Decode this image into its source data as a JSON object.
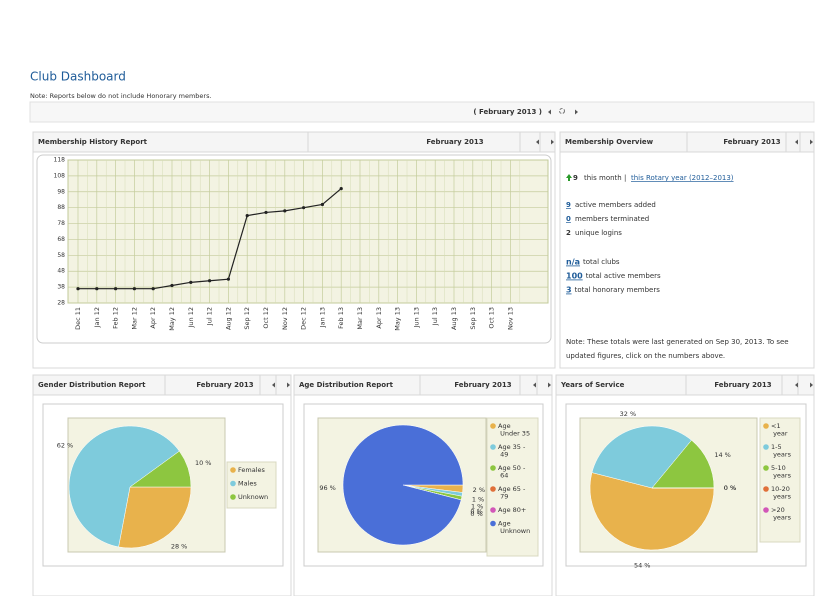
{
  "header": {
    "title": "Club Dashboard",
    "note": "Note: Reports below do not include Honorary members.",
    "period": "( February 2013 )"
  },
  "overview": {
    "title": "Membership Overview",
    "period": "February 2013",
    "month_count": 9,
    "month_text": "this month |",
    "year_link": "this Rotary year (2012–2013)",
    "stats": [
      {
        "value": 9,
        "label": "active members added"
      },
      {
        "value": 0,
        "label": "members terminated"
      },
      {
        "value": 2,
        "label": "unique logins"
      }
    ],
    "totals": [
      {
        "value": "n/a",
        "label": "total clubs"
      },
      {
        "value": 100,
        "label": "total active members"
      },
      {
        "value": 3,
        "label": "total honorary members"
      }
    ],
    "note": [
      "Note: These totals were last generated on Sep 30, 2013. To see",
      "updated figures, click on the numbers above."
    ]
  },
  "chart_data": [
    {
      "type": "line",
      "title": "Membership History Report",
      "period": "February 2013",
      "categories": [
        "Dec 11",
        "Jan 12",
        "Feb 12",
        "Mar 12",
        "Apr 12",
        "May 12",
        "Jun 12",
        "Jul 12",
        "Aug 12",
        "Sep 12",
        "Oct 12",
        "Nov 12",
        "Dec 12",
        "Jan 13",
        "Feb 13",
        "Mar 13",
        "Apr 13",
        "May 13",
        "Jun 13",
        "Jul 13",
        "Aug 13",
        "Sep 13",
        "Oct 13",
        "Nov 13"
      ],
      "values": [
        37,
        37,
        37,
        37,
        37,
        39,
        41,
        42,
        43,
        83,
        85,
        86,
        88,
        90,
        100,
        null,
        null,
        null,
        null,
        null,
        null,
        null,
        null,
        null
      ],
      "color": "#222222",
      "ylim": [
        28,
        118
      ],
      "yticks": [
        28,
        38,
        48,
        58,
        68,
        78,
        88,
        98,
        108,
        118
      ],
      "grid": true
    },
    {
      "type": "pie",
      "title": "Gender Distribution Report",
      "period": "February 2013",
      "categories": [
        "Females",
        "Males",
        "Unknown"
      ],
      "values": [
        28,
        62,
        10
      ],
      "value_labels": [
        "28 %",
        "62 %",
        "10 %"
      ],
      "colors": [
        "#e8b24c",
        "#7ecbdc",
        "#8dc640"
      ]
    },
    {
      "type": "pie",
      "title": "Age Distribution Report",
      "period": "February 2013",
      "categories": [
        "Age Under 35",
        "Age 35 - 49",
        "Age 50 - 64",
        "Age 65 - 79",
        "Age 80+",
        "Age Unknown"
      ],
      "values": [
        2,
        1,
        1,
        0,
        0,
        96
      ],
      "value_labels": [
        "2 %",
        "1 %",
        "1 %",
        "0 %",
        "0 %",
        "96 %"
      ],
      "colors": [
        "#e8b24c",
        "#7ecbdc",
        "#8dc640",
        "#e0703a",
        "#d257b8",
        "#4a6fd8"
      ]
    },
    {
      "type": "pie",
      "title": "Years of Service",
      "period": "February 2013",
      "categories": [
        "<1 year",
        "1-5 years",
        "5-10 years",
        "10-20 years",
        ">20 years"
      ],
      "values": [
        54,
        32,
        14,
        0,
        0
      ],
      "value_labels": [
        "54 %",
        "32 %",
        "14 %",
        "0 %",
        "0 %"
      ],
      "colors": [
        "#e8b24c",
        "#7ecbdc",
        "#8dc640",
        "#e0703a",
        "#d257b8"
      ]
    }
  ]
}
